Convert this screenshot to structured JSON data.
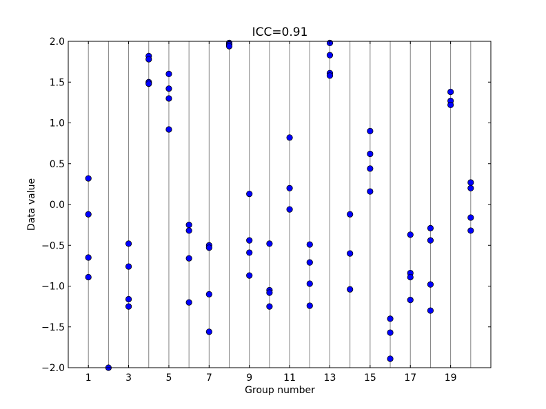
{
  "chart_data": {
    "type": "scatter",
    "title": "ICC=0.91",
    "xlabel": "Group number",
    "ylabel": "Data value",
    "xlim": [
      0,
      21
    ],
    "ylim": [
      -2.0,
      2.0
    ],
    "xticks": [
      1,
      3,
      5,
      7,
      9,
      11,
      13,
      15,
      17,
      19
    ],
    "xtick_labels": [
      "1",
      "3",
      "5",
      "7",
      "9",
      "11",
      "13",
      "15",
      "17",
      "19"
    ],
    "yticks": [
      -2.0,
      -1.5,
      -1.0,
      -0.5,
      0.0,
      0.5,
      1.0,
      1.5,
      2.0
    ],
    "ytick_labels": [
      "−2.0",
      "−1.5",
      "−1.0",
      "−0.5",
      "0.0",
      "0.5",
      "1.0",
      "1.5",
      "2.0"
    ],
    "group_lines": [
      1,
      2,
      3,
      4,
      5,
      6,
      7,
      8,
      9,
      10,
      11,
      12,
      13,
      14,
      15,
      16,
      17,
      18,
      19,
      20
    ],
    "marker_color": "#0000ff",
    "marker_edge": "#000000",
    "line_color": "#808080",
    "points": [
      {
        "x": 1,
        "y": 0.32
      },
      {
        "x": 1,
        "y": -0.12
      },
      {
        "x": 1,
        "y": -0.65
      },
      {
        "x": 1,
        "y": -0.89
      },
      {
        "x": 2,
        "y": -2.0
      },
      {
        "x": 3,
        "y": -0.48
      },
      {
        "x": 3,
        "y": -0.76
      },
      {
        "x": 3,
        "y": -1.16
      },
      {
        "x": 3,
        "y": -1.25
      },
      {
        "x": 4,
        "y": 1.82
      },
      {
        "x": 4,
        "y": 1.78
      },
      {
        "x": 4,
        "y": 1.5
      },
      {
        "x": 4,
        "y": 1.48
      },
      {
        "x": 5,
        "y": 1.6
      },
      {
        "x": 5,
        "y": 1.42
      },
      {
        "x": 5,
        "y": 1.3
      },
      {
        "x": 5,
        "y": 0.92
      },
      {
        "x": 6,
        "y": -0.25
      },
      {
        "x": 6,
        "y": -0.32
      },
      {
        "x": 6,
        "y": -0.66
      },
      {
        "x": 6,
        "y": -1.2
      },
      {
        "x": 7,
        "y": -0.5
      },
      {
        "x": 7,
        "y": -0.53
      },
      {
        "x": 7,
        "y": -1.1
      },
      {
        "x": 7,
        "y": -1.56
      },
      {
        "x": 8,
        "y": 1.98
      },
      {
        "x": 8,
        "y": 1.96
      },
      {
        "x": 8,
        "y": 1.94
      },
      {
        "x": 9,
        "y": 0.13
      },
      {
        "x": 9,
        "y": -0.44
      },
      {
        "x": 9,
        "y": -0.59
      },
      {
        "x": 9,
        "y": -0.87
      },
      {
        "x": 10,
        "y": -0.48
      },
      {
        "x": 10,
        "y": -1.05
      },
      {
        "x": 10,
        "y": -1.08
      },
      {
        "x": 10,
        "y": -1.25
      },
      {
        "x": 11,
        "y": 0.82
      },
      {
        "x": 11,
        "y": 0.2
      },
      {
        "x": 11,
        "y": -0.06
      },
      {
        "x": 12,
        "y": -0.49
      },
      {
        "x": 12,
        "y": -0.71
      },
      {
        "x": 12,
        "y": -0.97
      },
      {
        "x": 12,
        "y": -1.24
      },
      {
        "x": 13,
        "y": 1.98
      },
      {
        "x": 13,
        "y": 1.83
      },
      {
        "x": 13,
        "y": 1.61
      },
      {
        "x": 13,
        "y": 1.58
      },
      {
        "x": 14,
        "y": -0.12
      },
      {
        "x": 14,
        "y": -0.6
      },
      {
        "x": 14,
        "y": -1.04
      },
      {
        "x": 15,
        "y": 0.9
      },
      {
        "x": 15,
        "y": 0.62
      },
      {
        "x": 15,
        "y": 0.44
      },
      {
        "x": 15,
        "y": 0.16
      },
      {
        "x": 16,
        "y": -1.4
      },
      {
        "x": 16,
        "y": -1.57
      },
      {
        "x": 16,
        "y": -1.89
      },
      {
        "x": 17,
        "y": -0.37
      },
      {
        "x": 17,
        "y": -0.84
      },
      {
        "x": 17,
        "y": -0.89
      },
      {
        "x": 17,
        "y": -1.17
      },
      {
        "x": 18,
        "y": -0.29
      },
      {
        "x": 18,
        "y": -0.44
      },
      {
        "x": 18,
        "y": -0.98
      },
      {
        "x": 18,
        "y": -1.3
      },
      {
        "x": 19,
        "y": 1.38
      },
      {
        "x": 19,
        "y": 1.27
      },
      {
        "x": 19,
        "y": 1.22
      },
      {
        "x": 20,
        "y": 0.27
      },
      {
        "x": 20,
        "y": 0.2
      },
      {
        "x": 20,
        "y": -0.16
      },
      {
        "x": 20,
        "y": -0.32
      }
    ]
  }
}
